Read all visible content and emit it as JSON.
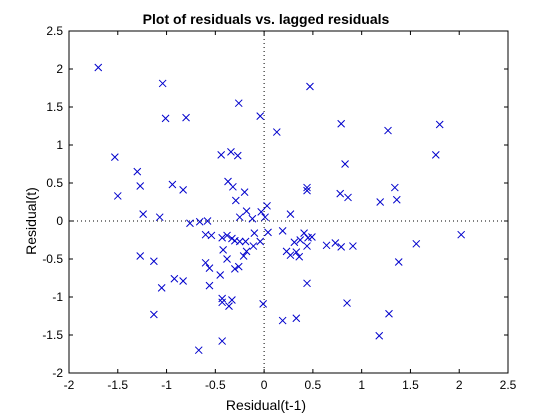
{
  "chart_data": {
    "type": "scatter",
    "title": "Plot of residuals vs. lagged residuals",
    "xlabel": "Residual(t-1)",
    "ylabel": "Residual(t)",
    "xlim": [
      -2,
      2.5
    ],
    "ylim": [
      -2,
      2.5
    ],
    "xticks": [
      "-2",
      "-1.5",
      "-1",
      "-0.5",
      "0",
      "0.5",
      "1",
      "1.5",
      "2",
      "2.5"
    ],
    "yticks": [
      "-2",
      "-1.5",
      "-1",
      "-0.5",
      "0",
      "0.5",
      "1",
      "1.5",
      "2",
      "2.5"
    ],
    "xtick_values": [
      -2,
      -1.5,
      -1,
      -0.5,
      0,
      0.5,
      1,
      1.5,
      2,
      2.5
    ],
    "ytick_values": [
      -2,
      -1.5,
      -1,
      -0.5,
      0,
      0.5,
      1,
      1.5,
      2,
      2.5
    ],
    "grid": false,
    "reference_lines": {
      "x0": true,
      "y0": true,
      "style": "dotted"
    },
    "marker": "x",
    "color": "#0000cc",
    "series": [
      {
        "x": [
          -1.7,
          -1.04,
          -1.01,
          -0.8,
          -0.26,
          -0.04,
          0.13,
          0.47,
          0.79,
          1.27,
          1.8,
          -1.53,
          -1.3,
          -0.44,
          -0.34,
          -0.27,
          0.83,
          1.76,
          -1.27,
          -0.94,
          -0.83,
          -0.37,
          -0.32,
          -0.2,
          0.44,
          0.44,
          0.78,
          0.86,
          1.34,
          1.36,
          1.19,
          -1.5,
          -1.24,
          -1.07,
          -0.76,
          -0.66,
          -0.58,
          -0.25,
          -0.18,
          -0.12,
          -0.29,
          0.01,
          0.03,
          0.27,
          -0.03,
          -0.6,
          -0.54,
          -0.43,
          -0.38,
          -0.33,
          -0.3,
          -0.25,
          -0.19,
          -0.1,
          0.04,
          0.19,
          0.31,
          0.37,
          0.41,
          0.45,
          0.49,
          0.64,
          0.73,
          0.79,
          0.91,
          1.56,
          2.02,
          -1.27,
          -1.13,
          -0.92,
          -0.83,
          -0.6,
          -0.56,
          -0.45,
          -0.42,
          -0.38,
          -0.3,
          -0.26,
          -0.21,
          -0.18,
          -0.11,
          -0.04,
          0.23,
          0.27,
          0.33,
          0.36,
          0.44,
          1.38,
          -1.05,
          -0.56,
          -0.43,
          -0.36,
          -0.33,
          0.44,
          0.85,
          -1.13,
          -0.43,
          -0.01,
          0.19,
          0.33,
          1.28,
          1.18,
          -0.43,
          -0.67
        ],
        "y": [
          2.02,
          1.81,
          1.35,
          1.36,
          1.55,
          1.38,
          1.17,
          1.77,
          1.28,
          1.19,
          1.27,
          0.84,
          0.65,
          0.87,
          0.91,
          0.86,
          0.75,
          0.87,
          0.46,
          0.48,
          0.41,
          0.52,
          0.45,
          0.38,
          0.44,
          0.4,
          0.36,
          0.31,
          0.44,
          0.28,
          0.25,
          0.33,
          0.09,
          0.05,
          -0.03,
          -0.01,
          0.0,
          0.05,
          0.13,
          0.03,
          0.27,
          0.05,
          0.2,
          0.09,
          0.12,
          -0.18,
          -0.19,
          -0.22,
          -0.19,
          -0.23,
          -0.26,
          -0.27,
          -0.27,
          -0.16,
          -0.15,
          -0.13,
          -0.28,
          -0.25,
          -0.16,
          -0.22,
          -0.21,
          -0.32,
          -0.29,
          -0.34,
          -0.33,
          -0.3,
          -0.18,
          -0.46,
          -0.53,
          -0.76,
          -0.79,
          -0.55,
          -0.62,
          -0.71,
          -0.38,
          -0.5,
          -0.63,
          -0.6,
          -0.46,
          -0.4,
          -0.33,
          -0.27,
          -0.4,
          -0.45,
          -0.41,
          -0.47,
          -0.33,
          -0.54,
          -0.88,
          -0.85,
          -1.07,
          -1.12,
          -1.04,
          -0.82,
          -1.08,
          -1.23,
          -1.58,
          -1.09,
          -1.31,
          -1.28,
          -1.22,
          -1.51,
          -1.02,
          -1.7
        ]
      }
    ]
  }
}
